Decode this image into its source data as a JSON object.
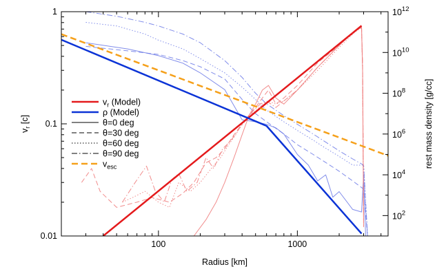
{
  "chart_data": {
    "type": "line",
    "title": "",
    "xlabel": "Radius [km]",
    "ylabel_left": {
      "main": "v",
      "sub": "r",
      "unit": " [c]"
    },
    "ylabel_right": "rest mass density [g/cc]",
    "x_scale": "log",
    "y_left_scale": "log",
    "y_right_scale": "log",
    "xlim": [
      20,
      4500
    ],
    "ylim_left": [
      0.01,
      1
    ],
    "ylim_right": [
      10,
      1000000000000.0
    ],
    "grid": false,
    "legend_position": "center-left",
    "x_ticks": [
      {
        "v": 100,
        "label": "100"
      },
      {
        "v": 1000,
        "label": "1000"
      }
    ],
    "y_left_ticks": [
      {
        "v": 0.01,
        "label": "0.01"
      },
      {
        "v": 0.1,
        "label": "0.1"
      },
      {
        "v": 1,
        "label": "1"
      }
    ],
    "y_right_ticks": [
      {
        "v": 100,
        "base": "10",
        "exp": "2"
      },
      {
        "v": 10000,
        "base": "10",
        "exp": "4"
      },
      {
        "v": 1000000,
        "base": "10",
        "exp": "6"
      },
      {
        "v": 100000000,
        "base": "10",
        "exp": "8"
      },
      {
        "v": 10000000000,
        "base": "10",
        "exp": "10"
      },
      {
        "v": 1000000000000,
        "base": "10",
        "exp": "12"
      }
    ],
    "legend": [
      {
        "key": "vr_model",
        "label": "v",
        "sub": "r",
        "suffix": " (Model)",
        "color": "#e41a1c",
        "dash": "",
        "width": 2.5
      },
      {
        "key": "rho_model",
        "label": "ρ (Model)",
        "color": "#0b33d6",
        "dash": "",
        "width": 2.5
      },
      {
        "key": "theta0",
        "label": "θ=0 deg",
        "color": "#000000",
        "dash": "",
        "width": 1
      },
      {
        "key": "theta30",
        "label": "θ=30 deg",
        "color": "#000000",
        "dash": "7,4",
        "width": 1
      },
      {
        "key": "theta60",
        "label": "θ=60 deg",
        "color": "#000000",
        "dash": "1.5,2.5",
        "width": 1
      },
      {
        "key": "theta90",
        "label": "θ=90 deg",
        "color": "#000000",
        "dash": "8,3,1.5,3",
        "width": 1
      },
      {
        "key": "vesc",
        "label": "v",
        "sub": "esc",
        "suffix": "",
        "color": "#f5a01a",
        "dash": "9,5",
        "width": 2.5
      }
    ],
    "series": [
      {
        "key": "vr_model",
        "axis": "left",
        "color": "#e41a1c",
        "width": 2.5,
        "dash": "",
        "opacity": 1,
        "x": [
          40,
          2900
        ],
        "y": [
          0.01,
          0.75
        ]
      },
      {
        "key": "rho_model",
        "axis": "right",
        "color": "#0b33d6",
        "width": 2.5,
        "dash": "",
        "opacity": 1,
        "x": [
          20,
          600,
          2900
        ],
        "y": [
          42000000000.0,
          2500000.0,
          13
        ]
      },
      {
        "key": "vesc",
        "axis": "left",
        "color": "#f5a01a",
        "width": 2.5,
        "dash": "9,5",
        "opacity": 1,
        "x": [
          20,
          4500
        ],
        "y": [
          0.63,
          0.052
        ]
      },
      {
        "key": "rho_theta0",
        "axis": "right",
        "color": "#6a78e6",
        "width": 1,
        "dash": "",
        "opacity": 0.85,
        "x": [
          30,
          60,
          100,
          150,
          200,
          300,
          400,
          500,
          600,
          700,
          800,
          1000,
          1200,
          1400,
          1600,
          1800,
          2000,
          2500,
          2900,
          3000,
          3100
        ],
        "y": [
          30000000000.0,
          15000000000.0,
          7000000000.0,
          3000000000.0,
          1000000000.0,
          150000000.0,
          5000000.0,
          4000000.0,
          3000000.0,
          2000000.0,
          1000000.0,
          100000.0,
          30000.0,
          5000.0,
          10000.0,
          800,
          1500,
          200,
          150,
          10000.0,
          10
        ]
      },
      {
        "key": "rho_theta30",
        "axis": "right",
        "color": "#6a78e6",
        "width": 1,
        "dash": "7,4",
        "opacity": 0.85,
        "x": [
          30,
          60,
          100,
          150,
          200,
          300,
          400,
          500,
          600,
          800,
          1000,
          1300,
          1600,
          2000,
          2500,
          3000,
          3200
        ],
        "y": [
          20000000000.0,
          12000000000.0,
          8000000000.0,
          4000000000.0,
          2000000000.0,
          500000000.0,
          50000000.0,
          10000000.0,
          4000000.0,
          1000000.0,
          300000.0,
          100000.0,
          40000.0,
          15000.0,
          5000.0,
          2000.0,
          10
        ]
      },
      {
        "key": "rho_theta60",
        "axis": "right",
        "color": "#6a78e6",
        "width": 1,
        "dash": "1.5,2.5",
        "opacity": 0.85,
        "x": [
          30,
          50,
          80,
          100,
          150,
          200,
          300,
          400,
          500,
          600,
          800,
          1000,
          1300,
          1600,
          2000,
          2500,
          3000,
          3200
        ],
        "y": [
          300000000000.0,
          200000000000.0,
          80000000000.0,
          40000000000.0,
          15000000000.0,
          5000000000.0,
          1000000000.0,
          200000000.0,
          50000000.0,
          15000000.0,
          4000000.0,
          1500000.0,
          500000.0,
          200000.0,
          80000.0,
          30000.0,
          30000.0,
          10
        ]
      },
      {
        "key": "rho_theta90",
        "axis": "right",
        "color": "#6a78e6",
        "width": 1,
        "dash": "8,3,1.5,3",
        "opacity": 0.85,
        "x": [
          30,
          50,
          80,
          100,
          150,
          200,
          300,
          400,
          500,
          600,
          800,
          1000,
          1300,
          1600,
          2000,
          2500,
          3000,
          3200
        ],
        "y": [
          1000000000000.0,
          600000000000.0,
          300000000000.0,
          200000000000.0,
          80000000000.0,
          30000000000.0,
          4000000000.0,
          600000000.0,
          100000000.0,
          30000000.0,
          8000000.0,
          3000000.0,
          1000000.0,
          400000.0,
          150000.0,
          60000.0,
          30000.0,
          10
        ]
      },
      {
        "key": "vr_theta0",
        "axis": "left",
        "color": "#f08080",
        "width": 1,
        "dash": "",
        "opacity": 0.9,
        "x": [
          180,
          220,
          260,
          300,
          350,
          400,
          450,
          500,
          560,
          620,
          700,
          800,
          1000,
          1400,
          2000,
          2600,
          2900,
          2950,
          3000
        ],
        "y": [
          0.01,
          0.014,
          0.02,
          0.03,
          0.05,
          0.08,
          0.12,
          0.15,
          0.2,
          0.22,
          0.17,
          0.15,
          0.2,
          0.32,
          0.5,
          0.68,
          0.72,
          0.3,
          0.012
        ]
      },
      {
        "key": "vr_theta30",
        "axis": "left",
        "color": "#f08080",
        "width": 1,
        "dash": "7,4",
        "opacity": 0.9,
        "x": [
          28,
          33,
          38,
          50,
          70,
          90,
          120,
          150,
          180,
          220,
          260,
          300,
          350,
          400,
          450,
          500,
          560,
          620,
          700,
          800,
          1000,
          1400,
          2000,
          2600,
          2900,
          2950,
          3000
        ],
        "y": [
          0.03,
          0.04,
          0.025,
          0.018,
          0.02,
          0.022,
          0.02,
          0.024,
          0.03,
          0.045,
          0.05,
          0.06,
          0.08,
          0.1,
          0.12,
          0.14,
          0.17,
          0.2,
          0.15,
          0.17,
          0.22,
          0.35,
          0.5,
          0.68,
          0.72,
          0.35,
          0.015
        ]
      },
      {
        "key": "vr_theta60",
        "axis": "left",
        "color": "#f08080",
        "width": 1,
        "dash": "1.5,2.5",
        "opacity": 0.9,
        "x": [
          55,
          65,
          80,
          100,
          120,
          140,
          170,
          200,
          240,
          280,
          320,
          360,
          400,
          450,
          500,
          560,
          620,
          700,
          800,
          1000,
          1400,
          2000,
          2600,
          2900,
          2950,
          3000
        ],
        "y": [
          0.02,
          0.022,
          0.025,
          0.02,
          0.018,
          0.03,
          0.025,
          0.03,
          0.04,
          0.05,
          0.065,
          0.08,
          0.1,
          0.12,
          0.13,
          0.15,
          0.16,
          0.15,
          0.16,
          0.2,
          0.3,
          0.48,
          0.66,
          0.72,
          0.3,
          0.012
        ]
      },
      {
        "key": "vr_theta90",
        "axis": "left",
        "color": "#f08080",
        "width": 1,
        "dash": "8,3,1.5,3",
        "opacity": 0.9,
        "x": [
          55,
          68,
          82,
          95,
          110,
          125,
          140,
          160,
          190,
          220,
          250,
          290,
          330,
          380,
          430,
          480,
          540,
          600,
          700,
          800,
          1000,
          1400,
          2000,
          2600,
          2900,
          2950,
          3000
        ],
        "y": [
          0.02,
          0.03,
          0.042,
          0.025,
          0.02,
          0.032,
          0.036,
          0.025,
          0.03,
          0.05,
          0.04,
          0.06,
          0.07,
          0.09,
          0.11,
          0.13,
          0.15,
          0.16,
          0.14,
          0.16,
          0.2,
          0.32,
          0.5,
          0.68,
          0.73,
          0.3,
          0.012
        ]
      }
    ]
  }
}
